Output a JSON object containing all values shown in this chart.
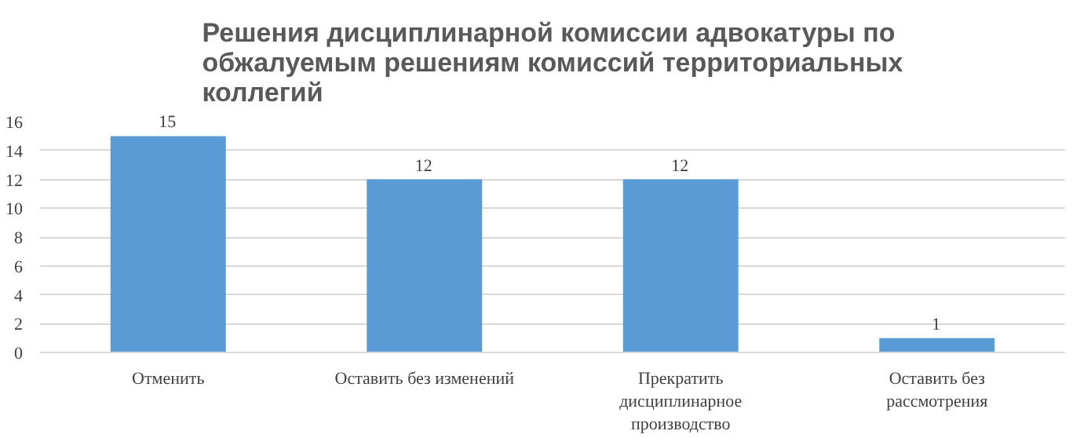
{
  "chart_data": {
    "type": "bar",
    "title": "Решения дисциплинарной комиссии адвокатуры по обжалуемым решениям комиссий территориальных коллегий",
    "categories": [
      "Отменить",
      "Оставить без изменений",
      "Прекратить дисциплинарное производство",
      "Оставить без рассмотрения"
    ],
    "values": [
      15,
      12,
      12,
      1
    ],
    "color": "#5b9bd5",
    "ylim": [
      0,
      16
    ],
    "yticks": [
      0,
      2,
      4,
      6,
      8,
      10,
      12,
      14,
      16
    ],
    "grid": "y",
    "data_labels": true
  }
}
